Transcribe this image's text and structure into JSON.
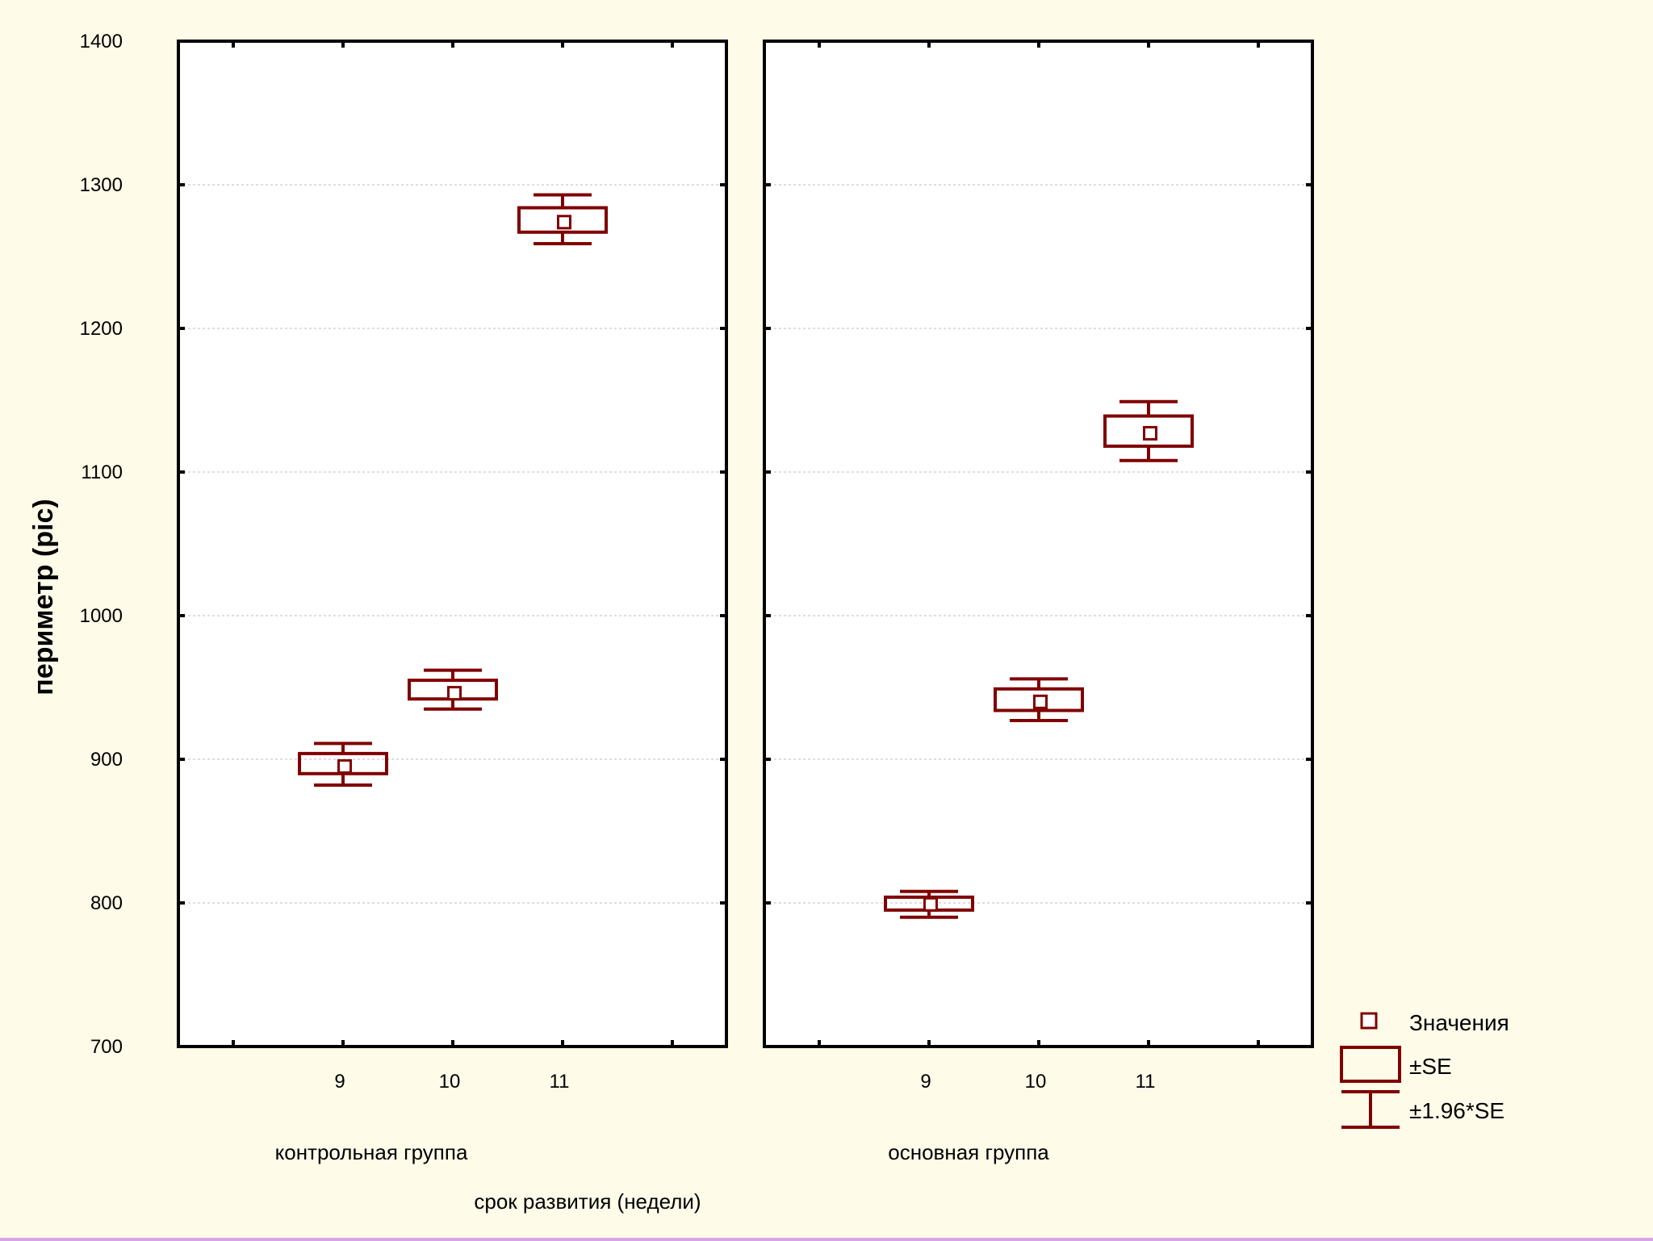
{
  "chart_data": {
    "type": "box",
    "ylabel": "периметр (pic)",
    "xlabel": "срок развития (недели)",
    "ylim": [
      700,
      1400
    ],
    "yticks": [
      700,
      800,
      900,
      1000,
      1100,
      1200,
      1300,
      1400
    ],
    "grid": true,
    "legend_position": "bottom-right",
    "colors": {
      "marks": "#800000",
      "axes": "#000000",
      "grid": "#bbbbbb",
      "background": "#fffbe9",
      "plot_bg": "#ffffff"
    },
    "panels": [
      {
        "group": "контрольная группа",
        "categories": [
          "9",
          "10",
          "11"
        ],
        "points": [
          {
            "week": "9",
            "mean": 895,
            "se_low": 890,
            "se_high": 904,
            "ci_low": 882,
            "ci_high": 911
          },
          {
            "week": "10",
            "mean": 946,
            "se_low": 942,
            "se_high": 955,
            "ci_low": 935,
            "ci_high": 962
          },
          {
            "week": "11",
            "mean": 1274,
            "se_low": 1267,
            "se_high": 1284,
            "ci_low": 1259,
            "ci_high": 1293
          }
        ]
      },
      {
        "group": "основная группа",
        "categories": [
          "9",
          "10",
          "11"
        ],
        "points": [
          {
            "week": "9",
            "mean": 799,
            "se_low": 795,
            "se_high": 804,
            "ci_low": 790,
            "ci_high": 808
          },
          {
            "week": "10",
            "mean": 940,
            "se_low": 934,
            "se_high": 949,
            "ci_low": 927,
            "ci_high": 956
          },
          {
            "week": "11",
            "mean": 1127,
            "se_low": 1118,
            "se_high": 1139,
            "ci_low": 1108,
            "ci_high": 1149
          }
        ]
      }
    ],
    "legend": [
      "Значения",
      "±SE",
      "±1.96*SE"
    ]
  }
}
